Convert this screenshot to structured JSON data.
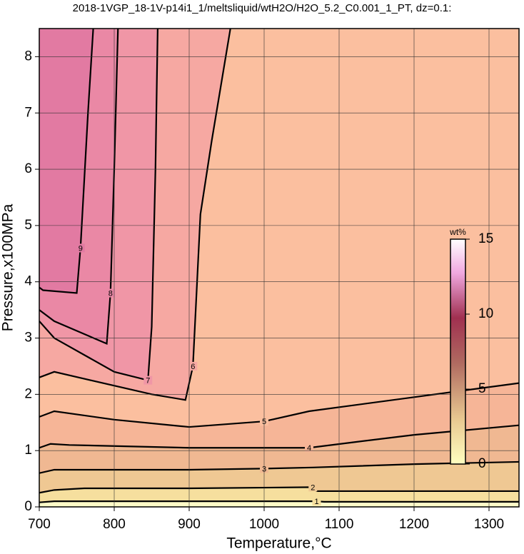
{
  "chart_data": {
    "type": "contour",
    "title": "2018-1VGP_18-1V-p14i1_1/meltsliquid/wtH2O/H2O_5.2_C0.001_1_PT, dz=0.1:",
    "x_label": "Temperature,°C",
    "y_label": "Pressure,x100MPa",
    "xlim": [
      700,
      1340
    ],
    "ylim": [
      0,
      8.5
    ],
    "xticks": [
      700,
      800,
      900,
      1000,
      1100,
      1200,
      1300
    ],
    "yticks": [
      0,
      1,
      2,
      3,
      4,
      5,
      6,
      7,
      8
    ],
    "grid": true,
    "colorbar": {
      "label": "wt%",
      "lim": [
        0,
        15
      ],
      "ticks": [
        0,
        5,
        10,
        15
      ]
    },
    "contours": [
      {
        "level": 1,
        "color": "#f6df9e",
        "x": [
          700,
          720,
          800,
          1000,
          1070,
          1080,
          1200,
          1340
        ],
        "y": [
          0.08,
          0.1,
          0.1,
          0.1,
          0.1,
          0.09,
          0.09,
          0.09
        ]
      },
      {
        "level": 2,
        "color": "#efc893",
        "x": [
          700,
          720,
          760,
          900,
          1065,
          1070,
          1200,
          1340
        ],
        "y": [
          0.25,
          0.3,
          0.33,
          0.33,
          0.35,
          0.28,
          0.28,
          0.28
        ]
      },
      {
        "level": 3,
        "color": "#f0b892",
        "x": [
          700,
          720,
          800,
          900,
          1000,
          1065,
          1200,
          1340
        ],
        "y": [
          0.6,
          0.66,
          0.66,
          0.66,
          0.68,
          0.7,
          0.76,
          0.8
        ]
      },
      {
        "level": 4,
        "color": "#f6b597",
        "x": [
          700,
          715,
          740,
          900,
          1060,
          1120,
          1200,
          1340
        ],
        "y": [
          1.05,
          1.12,
          1.1,
          1.05,
          1.05,
          1.15,
          1.28,
          1.45
        ]
      },
      {
        "level": 5,
        "color": "#fbbf9f",
        "x": [
          700,
          720,
          800,
          900,
          1000,
          1060,
          1200,
          1340
        ],
        "y": [
          1.6,
          1.7,
          1.55,
          1.42,
          1.52,
          1.7,
          1.95,
          2.2
        ]
      },
      {
        "level": 6,
        "color": "#f6a8a2",
        "x": [
          700,
          720,
          850,
          895,
          905,
          915,
          930,
          955
        ],
        "y": [
          2.3,
          2.4,
          2.0,
          1.9,
          2.5,
          5.2,
          6.5,
          8.5
        ]
      },
      {
        "level": 7,
        "color": "#f096a6",
        "x": [
          700,
          720,
          800,
          845,
          850,
          855,
          858
        ],
        "y": [
          3.3,
          3.0,
          2.4,
          2.25,
          3.2,
          6.0,
          8.5
        ]
      },
      {
        "level": 8,
        "color": "#ea88a5",
        "x": [
          700,
          720,
          790,
          795,
          800,
          805
        ],
        "y": [
          3.5,
          3.3,
          2.9,
          3.8,
          6.0,
          8.5
        ]
      },
      {
        "level": 9,
        "color": "#e27aa2",
        "x": [
          700,
          705,
          750,
          755,
          765,
          772
        ],
        "y": [
          3.9,
          3.85,
          3.8,
          4.6,
          7.0,
          8.5
        ]
      }
    ]
  }
}
